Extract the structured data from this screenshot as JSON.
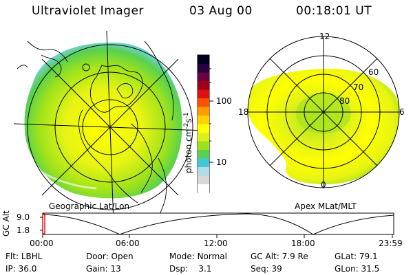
{
  "header": {
    "title": "Ultraviolet Imager",
    "date": "03 Aug 00",
    "time": "00:18:01 UT"
  },
  "colorbar": {
    "label": "photon cm",
    "exp1": "-2",
    "mid": "s",
    "exp2": "-1",
    "ticks": [
      "100",
      "10"
    ],
    "colors": [
      "#ffffff",
      "#d8d8d8",
      "#b0dde8",
      "#40c8d8",
      "#58d050",
      "#9ce21c",
      "#dcf01c",
      "#ffff00",
      "#ffd000",
      "#ff9a00",
      "#ff5000",
      "#e01010",
      "#a00018",
      "#6a0040",
      "#2a0040",
      "#000020"
    ]
  },
  "left_panel": {
    "caption": "Geographic Lat/Lon"
  },
  "right_panel": {
    "caption": "Apex MLat/MLT",
    "mlt_labels": {
      "top": "12",
      "left": "18",
      "right": "6",
      "bottom": "0"
    },
    "lat_labels": [
      "60",
      "70",
      "80"
    ]
  },
  "timeline": {
    "ylabel": "GC Alt",
    "y_ticks": [
      "9.0",
      "1.8"
    ],
    "x_ticks": [
      "00:00",
      "06:00",
      "12:00",
      "18:00",
      "23:59"
    ],
    "marker_color": "#e01010"
  },
  "info": {
    "row1": [
      {
        "k": "Flt:",
        "v": "LBHL"
      },
      {
        "k": "Door:",
        "v": "Open"
      },
      {
        "k": "Mode:",
        "v": "Normal"
      },
      {
        "k": "GC Alt:",
        "v": "7.9 Re"
      },
      {
        "k": "GLat:",
        "v": "79.1"
      }
    ],
    "row2": [
      {
        "k": "IP:",
        "v": "36.0"
      },
      {
        "k": "Gain:",
        "v": "13"
      },
      {
        "k": "Dsp:",
        "v": "3.1"
      },
      {
        "k": "Seq:",
        "v": "39"
      },
      {
        "k": "GLon:",
        "v": "31.5"
      }
    ]
  }
}
